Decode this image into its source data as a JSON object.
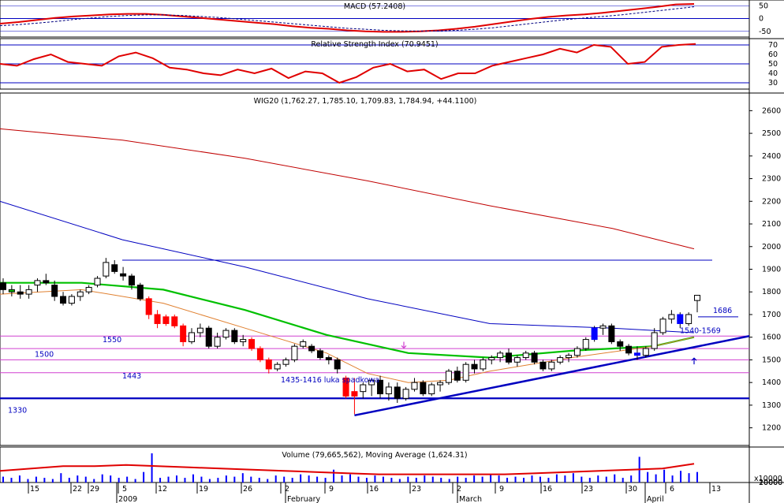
{
  "chart_data": [
    {
      "type": "line",
      "panel": "macd",
      "title": "MACD (57.2408)",
      "y_ticks": [
        "50",
        "0",
        "-50"
      ],
      "ylim": [
        -60,
        60
      ],
      "series": [
        {
          "name": "MACD",
          "color": "#e00000",
          "values": [
            -20,
            -14,
            -6,
            2,
            8,
            12,
            16,
            18,
            18,
            14,
            8,
            2,
            -4,
            -10,
            -16,
            -22,
            -30,
            -36,
            -40,
            -46,
            -50,
            -52,
            -52,
            -50,
            -46,
            -40,
            -32,
            -22,
            -12,
            -2,
            6,
            12,
            16,
            22,
            30,
            38,
            46,
            55,
            57
          ]
        },
        {
          "name": "Signal",
          "color": "#000080",
          "values": [
            -28,
            -24,
            -18,
            -12,
            -4,
            2,
            8,
            12,
            14,
            14,
            12,
            8,
            4,
            -2,
            -8,
            -14,
            -20,
            -26,
            -32,
            -38,
            -42,
            -46,
            -48,
            -49,
            -48,
            -46,
            -42,
            -36,
            -28,
            -20,
            -12,
            -4,
            2,
            8,
            14,
            22,
            30,
            38,
            46
          ]
        }
      ],
      "ref_lines": [
        0,
        50,
        -50
      ]
    },
    {
      "type": "line",
      "panel": "rsi",
      "title": "Relative Strength Index (70.9451)",
      "y_ticks": [
        "70",
        "60",
        "50",
        "40",
        "30"
      ],
      "ylim": [
        25,
        75
      ],
      "ref_lines": [
        70,
        50,
        30
      ],
      "series": [
        {
          "name": "RSI",
          "color": "#e00000",
          "values": [
            50,
            48,
            55,
            60,
            52,
            50,
            48,
            58,
            62,
            56,
            46,
            44,
            40,
            38,
            44,
            40,
            45,
            35,
            42,
            40,
            30,
            36,
            46,
            50,
            42,
            44,
            34,
            40,
            40,
            48,
            52,
            56,
            60,
            66,
            62,
            70,
            68,
            50,
            52,
            68,
            70,
            71
          ]
        }
      ]
    },
    {
      "type": "candlestick",
      "panel": "price",
      "title": "WIG20 (1,762.27, 1,785.10, 1,709.83, 1,784.94, +44.1100)",
      "ylim": [
        1150,
        2650
      ],
      "y_ticks": [
        "2600",
        "2500",
        "2400",
        "2300",
        "2200",
        "2100",
        "2000",
        "1900",
        "1800",
        "1700",
        "1600",
        "1500",
        "1400",
        "1300",
        "1200"
      ],
      "x_ticks": [
        "15",
        "22",
        "29",
        "5",
        "12",
        "19",
        "26",
        "2",
        "9",
        "16",
        "23",
        "2",
        "9",
        "16",
        "23",
        "30",
        "6",
        "13"
      ],
      "month_labels": [
        "2009",
        "February",
        "March",
        "April"
      ],
      "candles": [
        [
          1840,
          1860,
          1790,
          1810
        ],
        [
          1810,
          1830,
          1780,
          1800
        ],
        [
          1800,
          1830,
          1770,
          1790
        ],
        [
          1790,
          1830,
          1770,
          1810
        ],
        [
          1830,
          1860,
          1800,
          1850
        ],
        [
          1850,
          1880,
          1830,
          1840
        ],
        [
          1830,
          1850,
          1760,
          1780
        ],
        [
          1780,
          1800,
          1740,
          1750
        ],
        [
          1750,
          1790,
          1740,
          1780
        ],
        [
          1780,
          1810,
          1760,
          1800
        ],
        [
          1800,
          1830,
          1790,
          1820
        ],
        [
          1830,
          1870,
          1820,
          1860
        ],
        [
          1870,
          1950,
          1860,
          1930
        ],
        [
          1920,
          1940,
          1880,
          1890
        ],
        [
          1880,
          1910,
          1850,
          1870
        ],
        [
          1870,
          1880,
          1810,
          1830
        ],
        [
          1830,
          1840,
          1760,
          1770
        ],
        [
          1770,
          1780,
          1680,
          1700
        ],
        [
          1700,
          1720,
          1640,
          1660
        ],
        [
          1660,
          1700,
          1650,
          1690
        ],
        [
          1690,
          1700,
          1640,
          1650
        ],
        [
          1650,
          1660,
          1560,
          1580
        ],
        [
          1580,
          1640,
          1570,
          1620
        ],
        [
          1620,
          1660,
          1600,
          1640
        ],
        [
          1640,
          1650,
          1550,
          1560
        ],
        [
          1560,
          1620,
          1550,
          1600
        ],
        [
          1600,
          1640,
          1590,
          1630
        ],
        [
          1630,
          1640,
          1570,
          1580
        ],
        [
          1580,
          1610,
          1560,
          1590
        ],
        [
          1590,
          1600,
          1540,
          1550
        ],
        [
          1550,
          1560,
          1490,
          1500
        ],
        [
          1500,
          1510,
          1440,
          1460
        ],
        [
          1460,
          1490,
          1450,
          1480
        ],
        [
          1480,
          1510,
          1470,
          1500
        ],
        [
          1500,
          1570,
          1490,
          1560
        ],
        [
          1560,
          1590,
          1550,
          1580
        ],
        [
          1560,
          1570,
          1530,
          1540
        ],
        [
          1540,
          1550,
          1500,
          1510
        ],
        [
          1510,
          1520,
          1480,
          1500
        ],
        [
          1500,
          1510,
          1440,
          1460
        ],
        [
          1420,
          1430,
          1330,
          1340
        ],
        [
          1340,
          1420,
          1260,
          1360
        ],
        [
          1360,
          1400,
          1330,
          1390
        ],
        [
          1390,
          1420,
          1340,
          1410
        ],
        [
          1410,
          1430,
          1330,
          1350
        ],
        [
          1350,
          1400,
          1320,
          1380
        ],
        [
          1380,
          1400,
          1310,
          1330
        ],
        [
          1330,
          1380,
          1320,
          1370
        ],
        [
          1370,
          1420,
          1360,
          1400
        ],
        [
          1400,
          1410,
          1340,
          1350
        ],
        [
          1350,
          1400,
          1340,
          1390
        ],
        [
          1390,
          1410,
          1360,
          1400
        ],
        [
          1400,
          1460,
          1390,
          1450
        ],
        [
          1450,
          1470,
          1400,
          1410
        ],
        [
          1410,
          1490,
          1400,
          1480
        ],
        [
          1480,
          1500,
          1440,
          1460
        ],
        [
          1460,
          1510,
          1450,
          1500
        ],
        [
          1500,
          1520,
          1480,
          1510
        ],
        [
          1510,
          1540,
          1490,
          1530
        ],
        [
          1530,
          1550,
          1480,
          1490
        ],
        [
          1490,
          1520,
          1470,
          1510
        ],
        [
          1510,
          1540,
          1500,
          1530
        ],
        [
          1530,
          1540,
          1480,
          1490
        ],
        [
          1490,
          1500,
          1450,
          1460
        ],
        [
          1460,
          1500,
          1450,
          1490
        ],
        [
          1490,
          1520,
          1480,
          1510
        ],
        [
          1510,
          1530,
          1490,
          1520
        ],
        [
          1520,
          1560,
          1510,
          1550
        ],
        [
          1550,
          1600,
          1540,
          1590
        ],
        [
          1590,
          1650,
          1580,
          1640
        ],
        [
          1640,
          1660,
          1610,
          1650
        ],
        [
          1650,
          1660,
          1570,
          1580
        ],
        [
          1580,
          1590,
          1540,
          1560
        ],
        [
          1560,
          1570,
          1520,
          1530
        ],
        [
          1530,
          1560,
          1500,
          1520
        ],
        [
          1520,
          1560,
          1510,
          1550
        ],
        [
          1550,
          1640,
          1540,
          1620
        ],
        [
          1620,
          1690,
          1610,
          1680
        ],
        [
          1680,
          1720,
          1660,
          1700
        ],
        [
          1700,
          1710,
          1640,
          1660
        ],
        [
          1660,
          1710,
          1650,
          1700
        ],
        [
          1762,
          1785,
          1710,
          1785
        ]
      ],
      "moving_averages": [
        {
          "name": "MA long",
          "color": "#c00000",
          "x": [
            0,
            15,
            30,
            45,
            60,
            75,
            85
          ],
          "values": [
            2520,
            2470,
            2390,
            2290,
            2180,
            2080,
            1990
          ]
        },
        {
          "name": "MA mid",
          "color": "#0000c0",
          "x": [
            0,
            15,
            30,
            45,
            60,
            75,
            85
          ],
          "values": [
            2200,
            2030,
            1910,
            1770,
            1660,
            1640,
            1620
          ]
        },
        {
          "name": "MA green",
          "color": "#00c000",
          "x": [
            0,
            10,
            20,
            30,
            40,
            50,
            60,
            70,
            80,
            85
          ],
          "values": [
            1840,
            1840,
            1810,
            1720,
            1610,
            1530,
            1510,
            1540,
            1560,
            1600
          ]
        },
        {
          "name": "MA short",
          "color": "#e08030",
          "x": [
            0,
            10,
            20,
            30,
            40,
            45,
            50,
            55,
            60,
            70,
            80,
            85
          ],
          "values": [
            1790,
            1810,
            1750,
            1640,
            1530,
            1440,
            1400,
            1410,
            1450,
            1510,
            1560,
            1600
          ]
        }
      ],
      "annotations": [
        {
          "text": "1550",
          "value": 1550
        },
        {
          "text": "1500",
          "value": 1500
        },
        {
          "text": "1443",
          "value": 1443
        },
        {
          "text": "1330",
          "value": 1330
        },
        {
          "text": "1435-1416 luka spadkowa",
          "value": 1435
        },
        {
          "text": "1686",
          "value": 1686
        },
        {
          "text": "1540-1569",
          "value": 1569
        }
      ],
      "h_lines": [
        {
          "value": 1940,
          "color": "#0000c0"
        },
        {
          "value": 1605,
          "color": "#d040d0"
        },
        {
          "value": 1550,
          "color": "#d040d0"
        },
        {
          "value": 1500,
          "color": "#d040d0"
        },
        {
          "value": 1443,
          "color": "#d040d0"
        },
        {
          "value": 1330,
          "color": "#0000c0"
        }
      ],
      "trendline": {
        "from": [
          41,
          1255
        ],
        "to": [
          93,
          1605
        ],
        "color": "#0000c0"
      }
    },
    {
      "type": "bar",
      "panel": "volume",
      "title": "Volume (79,665,562), Moving Average (1,624.31)",
      "y_ticks": [
        "20000",
        "10000"
      ],
      "unit_label": "x10000",
      "values": [
        5,
        4,
        6,
        3,
        5,
        4,
        3,
        8,
        4,
        6,
        5,
        3,
        7,
        6,
        4,
        5,
        3,
        9,
        25,
        4,
        5,
        6,
        4,
        7,
        5,
        3,
        4,
        6,
        5,
        8,
        5,
        4,
        3,
        6,
        5,
        4,
        7,
        6,
        5,
        4,
        11,
        6,
        7,
        5,
        4,
        6,
        5,
        4,
        3,
        5,
        4,
        6,
        5,
        4,
        3,
        5,
        4,
        6,
        5,
        7,
        6,
        4,
        5,
        4,
        6,
        5,
        4,
        7,
        6,
        8,
        5,
        4,
        6,
        5,
        7,
        4,
        6,
        22,
        9,
        7,
        11,
        6,
        10,
        8,
        9
      ],
      "ma_color": "#e00000",
      "ma_values": [
        10,
        12,
        14,
        14,
        15,
        14,
        13,
        12,
        11,
        10,
        9,
        8,
        7,
        7,
        7,
        7,
        7,
        8,
        9,
        10,
        11,
        12,
        16
      ]
    }
  ]
}
